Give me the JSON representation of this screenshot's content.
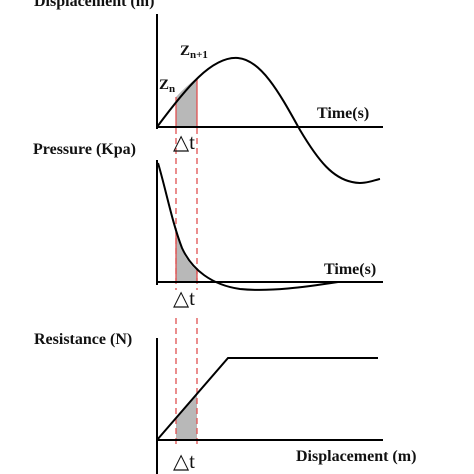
{
  "panels": {
    "displacement": {
      "y_label": "Displacement (m)",
      "x_label": "Time(s)",
      "curve_labels": {
        "zn": "Zn",
        "zn_sub": "n",
        "zn1": "Zn+1",
        "zn1_sub": "n+1"
      }
    },
    "pressure": {
      "y_label": "Pressure (Kpa)",
      "x_label": "Time(s)",
      "delta_label": "△t"
    },
    "resistance": {
      "y_label": "Resistance (N)",
      "x_label": "Displacement (m)",
      "delta_label": "△t"
    }
  },
  "colors": {
    "axis": "#000000",
    "curve": "#000000",
    "interval_fill": "#b8b8b8",
    "interval_line": "#e05050"
  }
}
